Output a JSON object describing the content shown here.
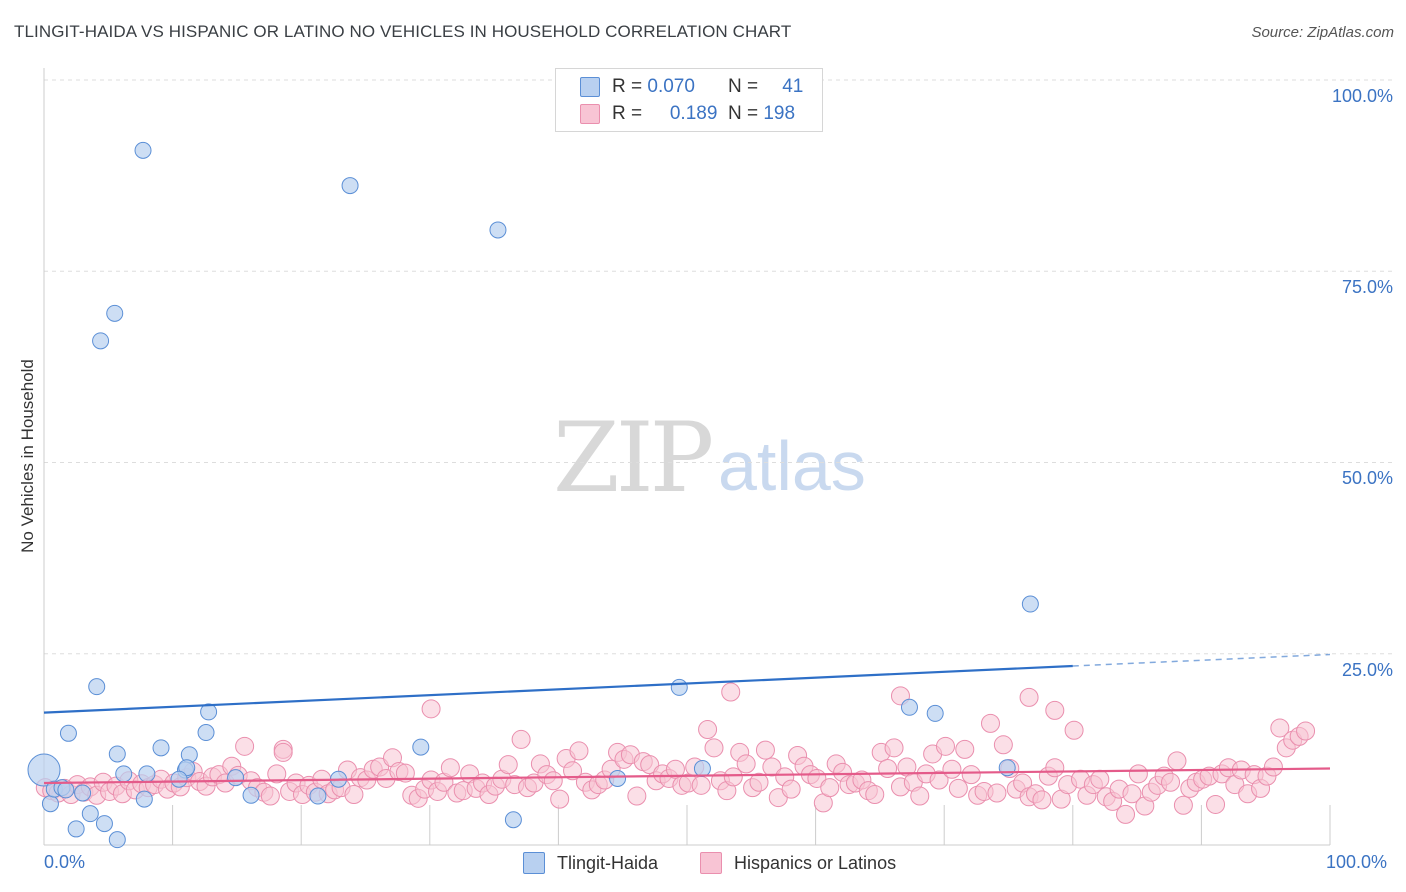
{
  "title": "TLINGIT-HAIDA VS HISPANIC OR LATINO NO VEHICLES IN HOUSEHOLD CORRELATION CHART",
  "source": "Source: ZipAtlas.com",
  "watermark": {
    "zip": "ZIP",
    "atlas": "atlas"
  },
  "legend": {
    "rows": [
      {
        "r_label": "R =",
        "r_value": "0.070",
        "n_label": "N =",
        "n_value": "41"
      },
      {
        "r_label": "R =",
        "r_value": "0.189",
        "n_label": "N =",
        "n_value": "198"
      }
    ]
  },
  "colors": {
    "tlingit_fill": "#b8d0f0",
    "tlingit_stroke": "#5b8fd6",
    "tlingit_line": "#2e6fc7",
    "hispanic_fill": "#f8c4d4",
    "hispanic_stroke": "#ea8fae",
    "hispanic_line": "#e45b8a",
    "grid": "#dddddd",
    "axis_text": "#3b73c3"
  },
  "chart_data": {
    "type": "scatter",
    "title": "TLINGIT-HAIDA VS HISPANIC OR LATINO NO VEHICLES IN HOUSEHOLD CORRELATION CHART",
    "xlabel": "",
    "ylabel": "No Vehicles in Household",
    "xlim": [
      0,
      100
    ],
    "ylim": [
      0,
      100
    ],
    "x_tick_labels": [
      "0.0%",
      "100.0%"
    ],
    "y_tick_labels": [
      "100.0%",
      "75.0%",
      "50.0%",
      "25.0%"
    ],
    "y_ticks": [
      100,
      75,
      50,
      25
    ],
    "grid": true,
    "series": [
      {
        "name": "Tlingit-Haida",
        "r": 0.07,
        "n": 41,
        "trend": {
          "x0": 0,
          "y0": 17.3,
          "x1": 80,
          "y1": 23.4,
          "dashed_to_x": 100,
          "dashed_to_y": 24.9
        },
        "points": [
          [
            7.7,
            90.8
          ],
          [
            23.8,
            86.2
          ],
          [
            35.3,
            80.4
          ],
          [
            5.5,
            69.5
          ],
          [
            4.4,
            65.9
          ],
          [
            76.7,
            31.5
          ],
          [
            4.1,
            20.7
          ],
          [
            49.4,
            20.6
          ],
          [
            12.8,
            17.4
          ],
          [
            67.3,
            18.0
          ],
          [
            69.3,
            17.2
          ],
          [
            1.9,
            14.6
          ],
          [
            9.1,
            12.7
          ],
          [
            12.6,
            14.7
          ],
          [
            5.7,
            11.9
          ],
          [
            11.3,
            11.8
          ],
          [
            29.3,
            12.8
          ],
          [
            0.0,
            9.8
          ],
          [
            6.2,
            9.3
          ],
          [
            11.0,
            9.8
          ],
          [
            11.1,
            10.1
          ],
          [
            8.0,
            9.3
          ],
          [
            10.5,
            8.6
          ],
          [
            14.9,
            8.8
          ],
          [
            22.9,
            8.6
          ],
          [
            44.6,
            8.7
          ],
          [
            51.2,
            10.0
          ],
          [
            74.9,
            10.1
          ],
          [
            0.5,
            5.4
          ],
          [
            0.8,
            7.3
          ],
          [
            1.4,
            7.5
          ],
          [
            3.0,
            6.8
          ],
          [
            1.7,
            7.2
          ],
          [
            7.8,
            6.0
          ],
          [
            16.1,
            6.5
          ],
          [
            21.3,
            6.4
          ],
          [
            3.6,
            4.1
          ],
          [
            2.5,
            2.1
          ],
          [
            4.7,
            2.8
          ],
          [
            5.7,
            0.7
          ],
          [
            36.5,
            3.3
          ]
        ]
      },
      {
        "name": "Hispanics or Latinos",
        "r": 0.189,
        "n": 198,
        "trend": {
          "x0": 0,
          "y0": 8.1,
          "x1": 100,
          "y1": 10.0
        },
        "points": [
          [
            0.1,
            7.5
          ],
          [
            0.6,
            7.1
          ],
          [
            1.1,
            6.8
          ],
          [
            1.6,
            7.4
          ],
          [
            2.1,
            6.6
          ],
          [
            2.6,
            7.9
          ],
          [
            3.1,
            6.9
          ],
          [
            3.6,
            7.6
          ],
          [
            4.1,
            6.5
          ],
          [
            4.6,
            8.2
          ],
          [
            5.1,
            7.0
          ],
          [
            5.6,
            7.7
          ],
          [
            6.1,
            6.7
          ],
          [
            6.6,
            8.4
          ],
          [
            7.1,
            7.2
          ],
          [
            7.6,
            8.0
          ],
          [
            8.1,
            7.5
          ],
          [
            8.6,
            7.9
          ],
          [
            9.1,
            8.6
          ],
          [
            9.6,
            7.3
          ],
          [
            10.1,
            8.1
          ],
          [
            10.6,
            7.6
          ],
          [
            11.1,
            8.8
          ],
          [
            11.6,
            9.6
          ],
          [
            12.1,
            8.3
          ],
          [
            12.6,
            7.7
          ],
          [
            13.1,
            8.9
          ],
          [
            13.6,
            9.2
          ],
          [
            14.1,
            8.1
          ],
          [
            14.6,
            10.3
          ],
          [
            15.1,
            9.1
          ],
          [
            15.6,
            12.9
          ],
          [
            16.1,
            8.4
          ],
          [
            16.6,
            7.5
          ],
          [
            17.1,
            6.9
          ],
          [
            17.6,
            6.4
          ],
          [
            18.1,
            9.3
          ],
          [
            18.6,
            12.5
          ],
          [
            19.1,
            7.0
          ],
          [
            19.6,
            8.1
          ],
          [
            20.1,
            6.6
          ],
          [
            20.6,
            7.8
          ],
          [
            21.1,
            6.9
          ],
          [
            21.6,
            8.6
          ],
          [
            22.1,
            6.7
          ],
          [
            22.6,
            7.2
          ],
          [
            23.1,
            7.5
          ],
          [
            23.6,
            9.8
          ],
          [
            24.1,
            6.6
          ],
          [
            24.6,
            8.8
          ],
          [
            25.1,
            8.5
          ],
          [
            25.6,
            9.9
          ],
          [
            26.1,
            10.2
          ],
          [
            26.6,
            8.7
          ],
          [
            27.1,
            11.4
          ],
          [
            27.6,
            9.6
          ],
          [
            28.1,
            9.4
          ],
          [
            28.6,
            6.5
          ],
          [
            29.1,
            6.1
          ],
          [
            29.6,
            7.3
          ],
          [
            30.1,
            8.5
          ],
          [
            30.6,
            7.0
          ],
          [
            31.1,
            8.2
          ],
          [
            31.6,
            10.1
          ],
          [
            32.1,
            6.8
          ],
          [
            32.6,
            7.1
          ],
          [
            33.1,
            9.3
          ],
          [
            33.6,
            7.4
          ],
          [
            34.1,
            8.1
          ],
          [
            34.6,
            6.6
          ],
          [
            35.1,
            7.7
          ],
          [
            35.6,
            8.6
          ],
          [
            36.1,
            10.5
          ],
          [
            36.6,
            7.9
          ],
          [
            37.1,
            13.8
          ],
          [
            37.6,
            7.5
          ],
          [
            38.1,
            8.1
          ],
          [
            38.6,
            10.6
          ],
          [
            39.1,
            9.2
          ],
          [
            39.6,
            8.4
          ],
          [
            40.1,
            6.0
          ],
          [
            40.6,
            11.3
          ],
          [
            41.1,
            9.7
          ],
          [
            41.6,
            12.3
          ],
          [
            42.1,
            8.2
          ],
          [
            42.6,
            7.2
          ],
          [
            43.1,
            7.9
          ],
          [
            43.6,
            8.5
          ],
          [
            44.1,
            9.9
          ],
          [
            44.6,
            12.1
          ],
          [
            45.1,
            11.2
          ],
          [
            45.6,
            11.8
          ],
          [
            46.1,
            6.4
          ],
          [
            46.6,
            10.9
          ],
          [
            47.1,
            10.5
          ],
          [
            47.6,
            8.4
          ],
          [
            48.1,
            9.3
          ],
          [
            48.6,
            8.7
          ],
          [
            49.1,
            9.9
          ],
          [
            49.6,
            7.8
          ],
          [
            50.1,
            8.1
          ],
          [
            50.6,
            10.2
          ],
          [
            51.1,
            7.8
          ],
          [
            51.6,
            15.1
          ],
          [
            52.1,
            12.7
          ],
          [
            52.6,
            8.4
          ],
          [
            53.1,
            7.1
          ],
          [
            53.6,
            8.9
          ],
          [
            54.1,
            12.1
          ],
          [
            54.6,
            10.6
          ],
          [
            55.1,
            7.5
          ],
          [
            55.6,
            8.2
          ],
          [
            56.1,
            12.4
          ],
          [
            56.6,
            10.2
          ],
          [
            57.1,
            6.2
          ],
          [
            57.6,
            8.9
          ],
          [
            58.1,
            7.3
          ],
          [
            58.6,
            11.7
          ],
          [
            59.1,
            10.3
          ],
          [
            59.6,
            9.2
          ],
          [
            60.1,
            8.7
          ],
          [
            60.6,
            5.5
          ],
          [
            61.1,
            7.5
          ],
          [
            61.6,
            10.6
          ],
          [
            62.1,
            9.5
          ],
          [
            62.6,
            7.9
          ],
          [
            63.1,
            8.1
          ],
          [
            63.6,
            8.5
          ],
          [
            64.1,
            7.1
          ],
          [
            64.6,
            6.6
          ],
          [
            65.1,
            12.1
          ],
          [
            65.6,
            10.0
          ],
          [
            66.1,
            12.7
          ],
          [
            66.6,
            7.6
          ],
          [
            67.1,
            10.2
          ],
          [
            67.6,
            8.2
          ],
          [
            68.1,
            6.4
          ],
          [
            68.6,
            9.3
          ],
          [
            69.1,
            11.9
          ],
          [
            69.6,
            8.5
          ],
          [
            70.1,
            12.9
          ],
          [
            70.6,
            9.9
          ],
          [
            71.1,
            7.4
          ],
          [
            71.6,
            12.5
          ],
          [
            72.1,
            9.2
          ],
          [
            72.6,
            6.5
          ],
          [
            73.1,
            7.0
          ],
          [
            73.6,
            15.9
          ],
          [
            74.1,
            6.8
          ],
          [
            74.6,
            13.1
          ],
          [
            75.1,
            10.0
          ],
          [
            75.6,
            7.3
          ],
          [
            76.1,
            8.1
          ],
          [
            76.6,
            6.3
          ],
          [
            77.1,
            6.7
          ],
          [
            77.6,
            5.9
          ],
          [
            78.1,
            9.0
          ],
          [
            78.6,
            10.1
          ],
          [
            79.1,
            6.0
          ],
          [
            79.6,
            7.9
          ],
          [
            80.1,
            15.0
          ],
          [
            80.6,
            8.6
          ],
          [
            81.1,
            6.5
          ],
          [
            81.6,
            7.9
          ],
          [
            82.1,
            8.6
          ],
          [
            82.6,
            6.3
          ],
          [
            83.1,
            5.7
          ],
          [
            83.6,
            7.3
          ],
          [
            84.1,
            4.0
          ],
          [
            84.6,
            6.7
          ],
          [
            85.1,
            9.3
          ],
          [
            85.6,
            5.1
          ],
          [
            86.1,
            6.9
          ],
          [
            86.6,
            7.8
          ],
          [
            87.1,
            9.0
          ],
          [
            87.6,
            8.2
          ],
          [
            88.1,
            11.0
          ],
          [
            88.6,
            5.2
          ],
          [
            89.1,
            7.4
          ],
          [
            89.6,
            8.2
          ],
          [
            90.1,
            8.6
          ],
          [
            90.6,
            9.0
          ],
          [
            91.1,
            5.3
          ],
          [
            91.6,
            9.3
          ],
          [
            92.1,
            10.1
          ],
          [
            92.6,
            7.9
          ],
          [
            93.1,
            9.8
          ],
          [
            93.6,
            6.7
          ],
          [
            94.1,
            9.2
          ],
          [
            94.6,
            7.4
          ],
          [
            95.1,
            9.0
          ],
          [
            95.6,
            10.2
          ],
          [
            96.1,
            15.3
          ],
          [
            96.6,
            12.7
          ],
          [
            97.1,
            13.7
          ],
          [
            97.6,
            14.2
          ],
          [
            98.1,
            14.9
          ],
          [
            53.4,
            20.0
          ],
          [
            66.6,
            19.5
          ],
          [
            76.6,
            19.3
          ],
          [
            30.1,
            17.8
          ],
          [
            18.6,
            12.1
          ],
          [
            78.6,
            17.6
          ]
        ]
      }
    ]
  },
  "bottom_legend": {
    "tlingit": "Tlingit-Haida",
    "hispanic": "Hispanics or Latinos"
  }
}
